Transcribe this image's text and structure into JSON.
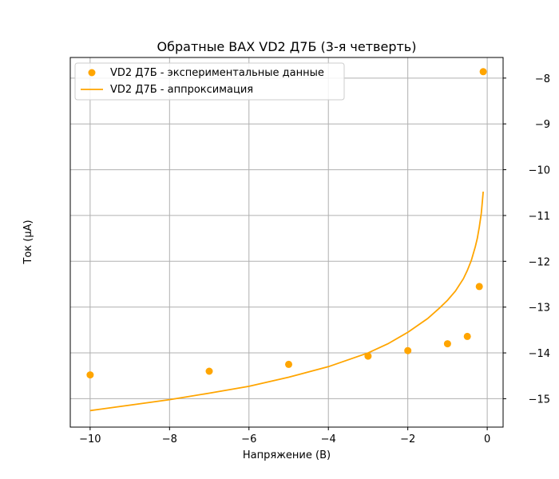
{
  "chart_data": {
    "type": "scatter+line",
    "title": "Обратные ВАХ VD2 Д7Б (3-я четверть)",
    "xlabel": "Напряжение (В)",
    "ylabel": "Ток (μА)",
    "xlim": [
      -10.5,
      0.4
    ],
    "ylim": [
      -15.62,
      -7.55
    ],
    "xticks": [
      -10,
      -8,
      -6,
      -4,
      -2,
      0
    ],
    "xtick_labels": [
      "−10",
      "−8",
      "−6",
      "−4",
      "−2",
      "0"
    ],
    "yticks": [
      -15,
      -14,
      -13,
      -12,
      -11,
      -10,
      -9,
      -8
    ],
    "ytick_labels": [
      "−15",
      "−14",
      "−13",
      "−12",
      "−11",
      "−10",
      "−9",
      "−8"
    ],
    "grid": true,
    "legend_position": "upper-left",
    "colors": {
      "series": "#FFA500",
      "grid": "#b0b0b0",
      "axes": "#000000"
    },
    "series": [
      {
        "name": "VD2 Д7Б - экспериментальные данные",
        "kind": "scatter",
        "x": [
          -10,
          -7,
          -5,
          -3,
          -2,
          -1,
          -0.5,
          -0.2,
          -0.1
        ],
        "y": [
          -14.48,
          -14.4,
          -14.25,
          -14.07,
          -13.95,
          -13.8,
          -13.64,
          -12.55,
          -7.86
        ]
      },
      {
        "name": "VD2 Д7Б - аппроксимация",
        "kind": "line",
        "x": [
          -10,
          -9,
          -8,
          -7,
          -6,
          -5,
          -4,
          -3,
          -2.5,
          -2,
          -1.5,
          -1.2,
          -1,
          -0.8,
          -0.6,
          -0.5,
          -0.4,
          -0.3,
          -0.25,
          -0.2,
          -0.15,
          -0.12,
          -0.1
        ],
        "y": [
          -15.26,
          -15.14,
          -15.02,
          -14.88,
          -14.73,
          -14.53,
          -14.3,
          -14.0,
          -13.8,
          -13.55,
          -13.25,
          -13.02,
          -12.85,
          -12.65,
          -12.38,
          -12.2,
          -11.98,
          -11.68,
          -11.5,
          -11.25,
          -10.95,
          -10.68,
          -10.48
        ]
      }
    ]
  }
}
